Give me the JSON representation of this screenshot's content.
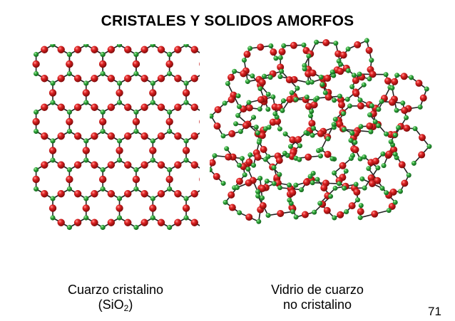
{
  "slide": {
    "title": "CRISTALES Y SOLIDOS AMORFOS",
    "left_caption": {
      "line1": "Cuarzo cristalino",
      "line2_prefix": "(SiO",
      "line2_sub": "2",
      "line2_suffix": ")"
    },
    "right_caption": {
      "line1": "Vidrio de cuarzo",
      "line2": "no cristalino"
    },
    "page_number": "71"
  },
  "colors": {
    "oxygen": "#d01818",
    "silicon": "#2ea83a",
    "bond": "#222222"
  },
  "icons": {
    "crystal": "crystalline-quartz-lattice-icon",
    "amorphous": "amorphous-quartz-glass-icon"
  }
}
